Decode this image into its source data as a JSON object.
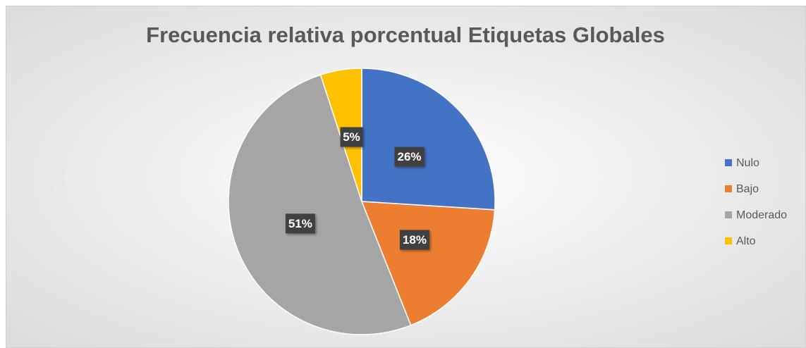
{
  "chart_data": {
    "type": "pie",
    "title": "Frecuencia relativa porcentual Etiquetas Globales",
    "categories": [
      "Nulo",
      "Bajo",
      "Moderado",
      "Alto"
    ],
    "values": [
      26,
      18,
      51,
      5
    ],
    "value_labels": [
      "26%",
      "18%",
      "51%",
      "5%"
    ],
    "colors": [
      "#4472c4",
      "#ed7d31",
      "#a5a5a5",
      "#ffc000"
    ],
    "legend": "right"
  }
}
